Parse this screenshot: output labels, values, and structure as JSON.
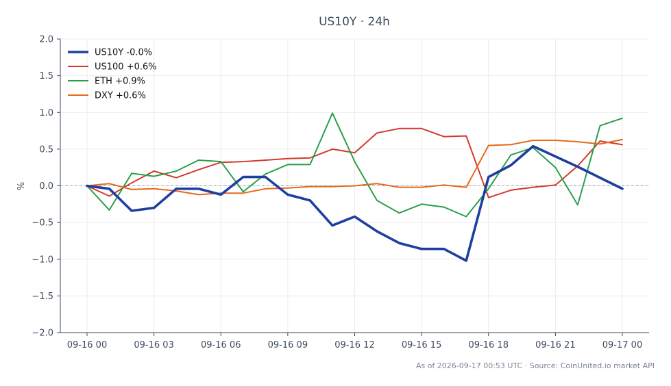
{
  "chart_data": {
    "type": "line",
    "title": "US10Y · 24h",
    "ylabel": "%",
    "xlabel": "",
    "ylim": [
      -2.0,
      2.0
    ],
    "yticks": [
      2.0,
      1.5,
      1.0,
      0.5,
      0.0,
      -0.5,
      -1.0,
      -1.5,
      -2.0
    ],
    "ytick_labels": [
      "2.0",
      "1.5",
      "1.0",
      "0.5",
      "0.0",
      "−0.5",
      "−1.0",
      "−1.5",
      "−2.0"
    ],
    "xticks": [
      {
        "at": 0,
        "label": "09-16 00"
      },
      {
        "at": 3,
        "label": "09-16 03"
      },
      {
        "at": 6,
        "label": "09-16 06"
      },
      {
        "at": 9,
        "label": "09-16 09"
      },
      {
        "at": 12,
        "label": "09-16 12"
      },
      {
        "at": 15,
        "label": "09-16 15"
      },
      {
        "at": 18,
        "label": "09-16 18"
      },
      {
        "at": 21,
        "label": "09-16 21"
      },
      {
        "at": 24,
        "label": "09-17 00"
      }
    ],
    "x": [
      0,
      1,
      2,
      3,
      4,
      5,
      6,
      7,
      8,
      9,
      10,
      11,
      12,
      13,
      14,
      15,
      16,
      17,
      18,
      19,
      20,
      21,
      22,
      23,
      24
    ],
    "grid": true,
    "legend_position": "top-left",
    "baseline": 0.0,
    "series": [
      {
        "name": "US10Y -0.0%",
        "color": "#1f3f9e",
        "values": [
          0.0,
          -0.04,
          -0.34,
          -0.3,
          -0.04,
          -0.04,
          -0.12,
          0.12,
          0.12,
          -0.12,
          -0.2,
          -0.54,
          -0.42,
          -0.62,
          -0.78,
          -0.86,
          -0.86,
          -1.02,
          0.12,
          0.28,
          0.54,
          0.4,
          0.26,
          0.11,
          -0.04
        ]
      },
      {
        "name": "US100 +0.6%",
        "color": "#d23a2e",
        "values": [
          0.0,
          -0.14,
          0.04,
          0.2,
          0.11,
          0.22,
          0.32,
          0.33,
          0.35,
          0.37,
          0.38,
          0.5,
          0.45,
          0.72,
          0.78,
          0.78,
          0.67,
          0.68,
          -0.16,
          -0.06,
          -0.02,
          0.01,
          0.27,
          0.61,
          0.56
        ]
      },
      {
        "name": "ETH +0.9%",
        "color": "#28a049",
        "values": [
          0.0,
          -0.33,
          0.17,
          0.13,
          0.2,
          0.35,
          0.33,
          -0.08,
          0.16,
          0.29,
          0.29,
          0.99,
          0.33,
          -0.2,
          -0.37,
          -0.25,
          -0.29,
          -0.42,
          -0.04,
          0.42,
          0.52,
          0.25,
          -0.26,
          0.82,
          0.92
        ]
      },
      {
        "name": "DXY +0.6%",
        "color": "#e4691a",
        "values": [
          0.0,
          0.03,
          -0.05,
          -0.04,
          -0.07,
          -0.12,
          -0.1,
          -0.1,
          -0.04,
          -0.03,
          -0.01,
          -0.01,
          0.0,
          0.03,
          -0.02,
          -0.02,
          0.01,
          -0.02,
          0.55,
          0.56,
          0.62,
          0.62,
          0.6,
          0.57,
          0.63
        ]
      }
    ]
  },
  "footer": {
    "text": "As of 2026-09-17 00:53 UTC · Source: CoinUnited.io market API"
  }
}
